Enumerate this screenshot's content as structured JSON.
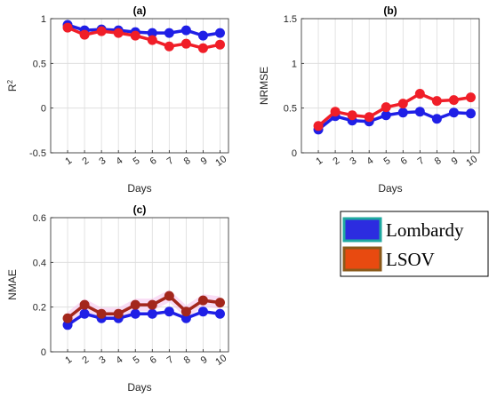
{
  "chart_data": [
    {
      "type": "line",
      "title": "(a)",
      "xlabel": "Days",
      "ylabel": "R",
      "ylabel_superscript": "2",
      "x": [
        1,
        2,
        3,
        4,
        5,
        6,
        7,
        8,
        9,
        10
      ],
      "xlim": [
        0,
        10.5
      ],
      "ylim": [
        -0.5,
        1
      ],
      "yticks": [
        -0.5,
        0,
        0.5,
        1
      ],
      "ytick_labels": [
        "-0.5",
        "0",
        "0.5",
        "1"
      ],
      "grid": true,
      "series": [
        {
          "values": [
            0.93,
            0.87,
            0.88,
            0.87,
            0.85,
            0.84,
            0.84,
            0.87,
            0.81,
            0.84
          ],
          "color": "#1f1fe6"
        },
        {
          "values": [
            0.9,
            0.82,
            0.86,
            0.84,
            0.81,
            0.76,
            0.69,
            0.72,
            0.67,
            0.71
          ],
          "color": "#f01e28"
        }
      ]
    },
    {
      "type": "line",
      "title": "(b)",
      "xlabel": "Days",
      "ylabel": "NRMSE",
      "x": [
        1,
        2,
        3,
        4,
        5,
        6,
        7,
        8,
        9,
        10
      ],
      "xlim": [
        0,
        10.5
      ],
      "ylim": [
        0,
        1.5
      ],
      "yticks": [
        0,
        0.5,
        1,
        1.5
      ],
      "ytick_labels": [
        "0",
        "0.5",
        "1",
        "1.5"
      ],
      "grid": true,
      "series": [
        {
          "values": [
            0.26,
            0.41,
            0.36,
            0.35,
            0.42,
            0.45,
            0.46,
            0.38,
            0.45,
            0.44
          ],
          "color": "#1f1fe6"
        },
        {
          "values": [
            0.3,
            0.46,
            0.42,
            0.4,
            0.51,
            0.55,
            0.66,
            0.58,
            0.59,
            0.62
          ],
          "color": "#f01e28"
        }
      ]
    },
    {
      "type": "line",
      "title": "(c)",
      "xlabel": "Days",
      "ylabel": "NMAE",
      "x": [
        1,
        2,
        3,
        4,
        5,
        6,
        7,
        8,
        9,
        10
      ],
      "xlim": [
        0,
        10.5
      ],
      "ylim": [
        0,
        0.6
      ],
      "yticks": [
        0,
        0.2,
        0.4,
        0.6
      ],
      "ytick_labels": [
        "0",
        "0.2",
        "0.4",
        "0.6"
      ],
      "grid": true,
      "series": [
        {
          "values": [
            0.12,
            0.17,
            0.15,
            0.15,
            0.17,
            0.17,
            0.18,
            0.15,
            0.18,
            0.17
          ],
          "color": "#1f1fe6"
        },
        {
          "values": [
            0.15,
            0.21,
            0.17,
            0.17,
            0.21,
            0.21,
            0.25,
            0.18,
            0.23,
            0.22
          ],
          "color": "#a3271c"
        }
      ]
    }
  ],
  "legend": {
    "placement": "right",
    "entries": [
      {
        "label": "Lombardy",
        "color": "#2c2ce0",
        "accent": "#1fa9a0"
      },
      {
        "label": "LSOV",
        "color": "#e84a10",
        "accent": "#8a5a1a"
      }
    ]
  }
}
